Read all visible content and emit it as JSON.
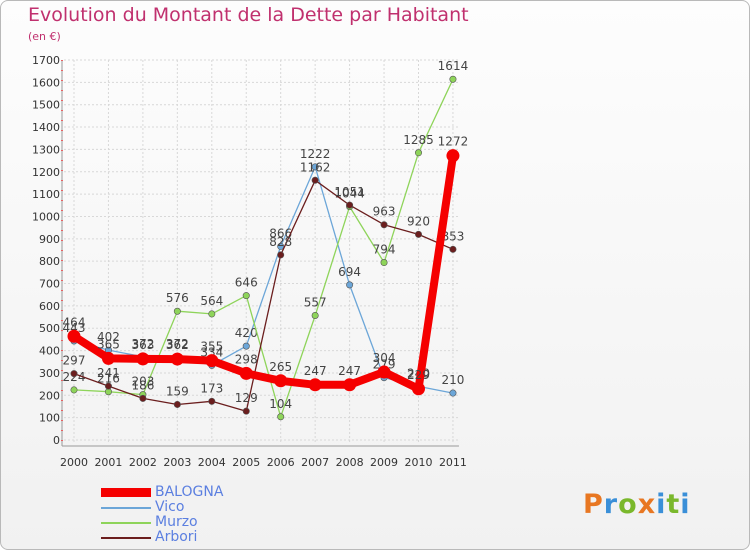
{
  "title": "Evolution du Montant de la Dette par Habitant",
  "unit": "(en €)",
  "brand": {
    "letters": [
      "P",
      "r",
      "o",
      "x",
      "i",
      "t",
      "i"
    ],
    "colors": [
      "#e87722",
      "#3a8fd8",
      "#7ab82c",
      "#e87722",
      "#3a8fd8",
      "#7ab82c",
      "#3a8fd8"
    ]
  },
  "chart_data": {
    "type": "line",
    "title": "Evolution du Montant de la Dette par Habitant",
    "ylabel": "(en €)",
    "xlabel": "",
    "ylim": [
      0,
      1700
    ],
    "yticks": [
      0,
      100,
      200,
      300,
      400,
      500,
      600,
      700,
      800,
      900,
      1000,
      1100,
      1200,
      1300,
      1400,
      1500,
      1600,
      1700
    ],
    "x": [
      "2000",
      "2001",
      "2002",
      "2003",
      "2004",
      "2005",
      "2006",
      "2007",
      "2008",
      "2009",
      "2010",
      "2011"
    ],
    "grid": true,
    "legend_position": "bottom-left",
    "series": [
      {
        "name": "BALOGNA",
        "color": "#f50000",
        "values": [
          464,
          365,
          363,
          362,
          355,
          298,
          265,
          247,
          247,
          304,
          229,
          1272
        ]
      },
      {
        "name": "Vico",
        "color": "#6ca6d8",
        "values": [
          443,
          402,
          372,
          372,
          334,
          420,
          866,
          1222,
          694,
          279,
          240,
          210
        ]
      },
      {
        "name": "Murzo",
        "color": "#8ed45a",
        "values": [
          224,
          216,
          203,
          576,
          564,
          646,
          104,
          557,
          1044,
          794,
          1285,
          1614
        ]
      },
      {
        "name": "Arbori",
        "color": "#6b1e1e",
        "values": [
          297,
          241,
          186,
          159,
          173,
          129,
          828,
          1162,
          1051,
          963,
          920,
          853
        ]
      }
    ]
  }
}
